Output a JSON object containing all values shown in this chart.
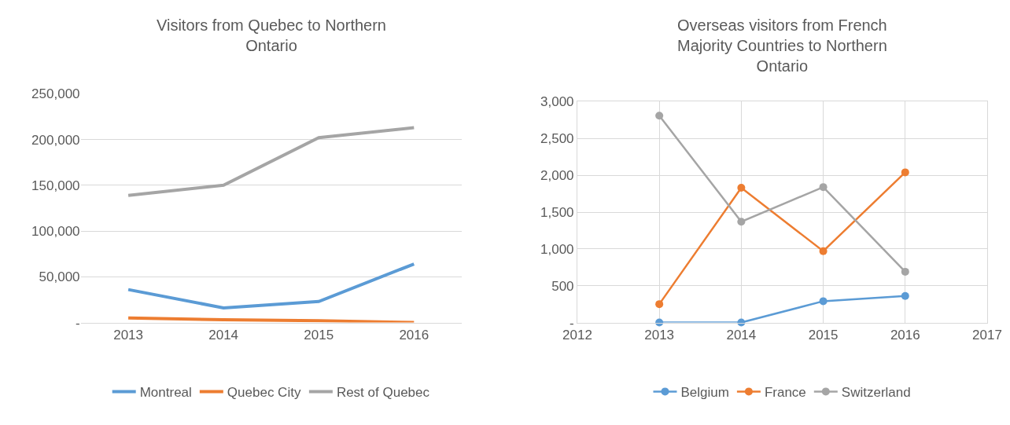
{
  "chart_data": [
    {
      "type": "line",
      "title": "Visitors from Quebec to Northern Ontario",
      "categories": [
        "2013",
        "2014",
        "2015",
        "2016"
      ],
      "series": [
        {
          "name": "Montreal",
          "color": "#5b9bd5",
          "values": [
            36000,
            16000,
            23000,
            64000
          ]
        },
        {
          "name": "Quebec City",
          "color": "#ed7d31",
          "values": [
            5000,
            3000,
            2000,
            0
          ]
        },
        {
          "name": "Rest of Quebec",
          "color": "#a5a5a5",
          "values": [
            139000,
            150000,
            202000,
            213000
          ]
        }
      ],
      "ylim": [
        0,
        250000
      ],
      "yticks": [
        {
          "value": 0,
          "label": "-"
        },
        {
          "value": 50000,
          "label": "50,000"
        },
        {
          "value": 100000,
          "label": "100,000"
        },
        {
          "value": 150000,
          "label": "150,000"
        },
        {
          "value": 200000,
          "label": "200,000"
        },
        {
          "value": 250000,
          "label": "250,000"
        }
      ],
      "grid": "y",
      "legend": "bottom",
      "marker": "none",
      "line_style": "solid"
    },
    {
      "type": "line",
      "title": "Overseas visitors from French Majority Countries to Northern Ontario",
      "x": [
        2013,
        2014,
        2015,
        2016
      ],
      "series": [
        {
          "name": "Belgium",
          "color": "#5b9bd5",
          "values": [
            0,
            0,
            290,
            360
          ]
        },
        {
          "name": "France",
          "color": "#ed7d31",
          "values": [
            250,
            1830,
            970,
            2040
          ]
        },
        {
          "name": "Switzerland",
          "color": "#a5a5a5",
          "values": [
            2810,
            1370,
            1840,
            690
          ]
        }
      ],
      "xlim": [
        2012,
        2017
      ],
      "xticks": [
        2012,
        2013,
        2014,
        2015,
        2016,
        2017
      ],
      "ylim": [
        0,
        3000
      ],
      "yticks": [
        {
          "value": 0,
          "label": "-"
        },
        {
          "value": 500,
          "label": "500"
        },
        {
          "value": 1000,
          "label": "1,000"
        },
        {
          "value": 1500,
          "label": "1,500"
        },
        {
          "value": 2000,
          "label": "2,000"
        },
        {
          "value": 2500,
          "label": "2,500"
        },
        {
          "value": 3000,
          "label": "3,000"
        }
      ],
      "grid": true,
      "legend": "bottom",
      "marker": "circle",
      "line_style": "solid"
    }
  ]
}
